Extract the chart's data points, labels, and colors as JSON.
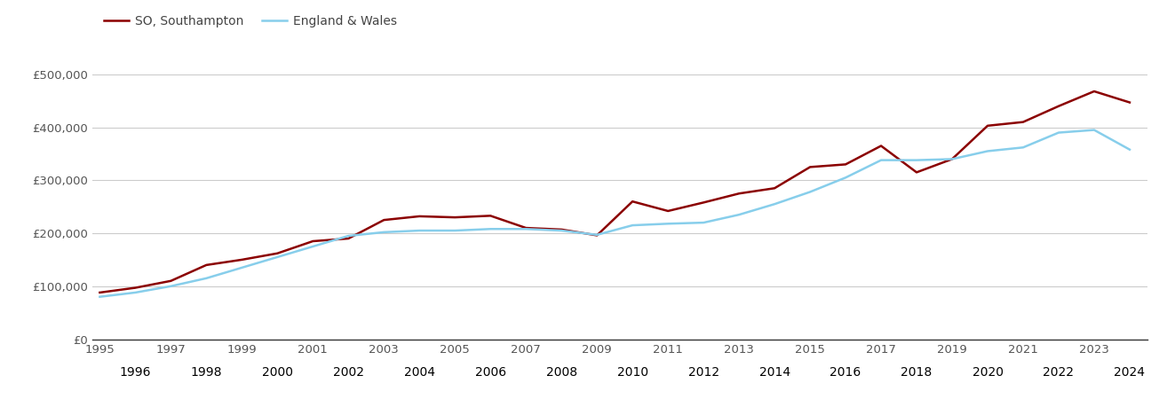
{
  "so_years": [
    1995,
    1996,
    1997,
    1998,
    1999,
    2000,
    2001,
    2002,
    2003,
    2004,
    2005,
    2006,
    2007,
    2008,
    2009,
    2010,
    2011,
    2012,
    2013,
    2014,
    2015,
    2016,
    2017,
    2018,
    2019,
    2020,
    2021,
    2022,
    2023,
    2024
  ],
  "so_values": [
    88000,
    97000,
    110000,
    140000,
    150000,
    162000,
    185000,
    190000,
    225000,
    232000,
    230000,
    233000,
    210000,
    207000,
    196000,
    260000,
    242000,
    258000,
    275000,
    285000,
    325000,
    330000,
    365000,
    315000,
    340000,
    403000,
    410000,
    440000,
    468000,
    447000
  ],
  "ew_years": [
    1995,
    1996,
    1997,
    1998,
    1999,
    2000,
    2001,
    2002,
    2003,
    2004,
    2005,
    2006,
    2007,
    2008,
    2009,
    2010,
    2011,
    2012,
    2013,
    2014,
    2015,
    2016,
    2017,
    2018,
    2019,
    2020,
    2021,
    2022,
    2023,
    2024
  ],
  "ew_values": [
    80000,
    88000,
    100000,
    115000,
    135000,
    155000,
    175000,
    195000,
    202000,
    205000,
    205000,
    208000,
    208000,
    205000,
    197000,
    215000,
    218000,
    220000,
    235000,
    255000,
    278000,
    305000,
    338000,
    338000,
    340000,
    355000,
    362000,
    390000,
    395000,
    358000
  ],
  "so_color": "#8b0000",
  "ew_color": "#87CEEB",
  "so_label": "SO, Southampton",
  "ew_label": "England & Wales",
  "ylim": [
    0,
    550000
  ],
  "yticks": [
    0,
    100000,
    200000,
    300000,
    400000,
    500000
  ],
  "ytick_labels": [
    "£0",
    "£100,000",
    "£200,000",
    "£300,000",
    "£400,000",
    "£500,000"
  ],
  "bg_color": "#ffffff",
  "grid_color": "#cccccc",
  "line_width": 1.8,
  "legend_fontsize": 10,
  "tick_fontsize": 9.5,
  "odd_years": [
    1995,
    1997,
    1999,
    2001,
    2003,
    2005,
    2007,
    2009,
    2011,
    2013,
    2015,
    2017,
    2019,
    2021,
    2023
  ],
  "even_years": [
    1996,
    1998,
    2000,
    2002,
    2004,
    2006,
    2008,
    2010,
    2012,
    2014,
    2016,
    2018,
    2020,
    2022,
    2024
  ]
}
